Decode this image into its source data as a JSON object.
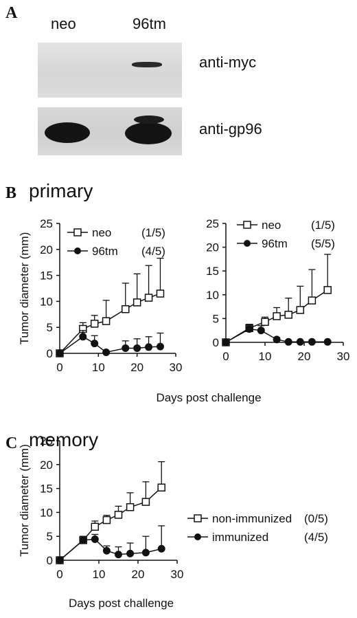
{
  "panels": {
    "a": {
      "letter": "A"
    },
    "b": {
      "letter": "B",
      "title": "primary"
    },
    "c": {
      "letter": "C",
      "title": "memory"
    }
  },
  "blot": {
    "lanes": [
      "neo",
      "96tm"
    ],
    "rows": [
      "anti-myc",
      "anti-gp96"
    ]
  },
  "colors": {
    "ink": "#111111",
    "blot_bg": "#dcdcdc",
    "band": "#1a1a1a"
  },
  "chart_data": [
    {
      "type": "line",
      "panel": "B",
      "ylabel": "Tumor diameter (mm)",
      "xlabel": "",
      "xlim": [
        0,
        30
      ],
      "ylim": [
        0,
        25
      ],
      "xticks": [
        0,
        10,
        20,
        30
      ],
      "yticks": [
        0,
        5,
        10,
        15,
        20,
        25
      ],
      "legend_position": "top-left",
      "series": [
        {
          "name": "neo",
          "count": "(1/5)",
          "marker": "square-open",
          "x": [
            0,
            6,
            9,
            12,
            17,
            20,
            23,
            26
          ],
          "y": [
            0,
            4.7,
            5.7,
            6.2,
            8.5,
            9.8,
            10.7,
            11.5
          ],
          "err": [
            0,
            1.2,
            1.6,
            4.0,
            5.0,
            5.5,
            6.2,
            6.8
          ]
        },
        {
          "name": "96tm",
          "count": "(4/5)",
          "marker": "circle-filled",
          "x": [
            0,
            6,
            9,
            12,
            17,
            20,
            23,
            26
          ],
          "y": [
            0,
            3.2,
            1.9,
            0.2,
            1.0,
            1.0,
            1.2,
            1.3
          ],
          "err": [
            0,
            1.2,
            1.5,
            0,
            1.4,
            1.8,
            2.0,
            2.6
          ]
        }
      ]
    },
    {
      "type": "line",
      "panel": "B",
      "ylabel": "",
      "xlabel": "",
      "xlim": [
        0,
        30
      ],
      "ylim": [
        0,
        25
      ],
      "xticks": [
        0,
        10,
        20,
        30
      ],
      "yticks": [
        0,
        5,
        10,
        15,
        20,
        25
      ],
      "legend_position": "top-left",
      "series": [
        {
          "name": "neo",
          "count": "(1/5)",
          "marker": "square-open",
          "x": [
            0,
            6,
            10,
            13,
            16,
            19,
            22,
            26
          ],
          "y": [
            0,
            3.0,
            4.3,
            5.5,
            5.8,
            6.8,
            8.8,
            11.0
          ],
          "err": [
            0,
            0.8,
            1.0,
            1.8,
            3.5,
            5.0,
            6.5,
            7.5
          ]
        },
        {
          "name": "96tm",
          "count": "(5/5)",
          "marker": "circle-filled",
          "x": [
            0,
            6,
            9,
            13,
            16,
            19,
            22,
            26
          ],
          "y": [
            0,
            2.8,
            2.5,
            0.6,
            0.1,
            0.1,
            0.1,
            0.1
          ],
          "err": [
            0,
            0.7,
            1.0,
            0.4,
            0,
            0,
            0,
            0
          ]
        }
      ]
    },
    {
      "type": "line",
      "panel": "B",
      "shared_xlabel": "Days post challenge"
    },
    {
      "type": "line",
      "panel": "C",
      "ylabel": "Tumor diameter (mm)",
      "xlabel": "Days post challenge",
      "xlim": [
        0,
        30
      ],
      "ylim": [
        0,
        25
      ],
      "xticks": [
        0,
        10,
        20,
        30
      ],
      "yticks": [
        0,
        5,
        10,
        15,
        20,
        25
      ],
      "legend_position": "right",
      "series": [
        {
          "name": "non-immunized",
          "count": "(0/5)",
          "marker": "square-open",
          "x": [
            0,
            6,
            9,
            12,
            15,
            18,
            22,
            26
          ],
          "y": [
            0,
            4.2,
            7.0,
            8.4,
            9.5,
            11.1,
            12.2,
            15.2
          ],
          "err": [
            0,
            0.8,
            1.2,
            1.0,
            1.8,
            3.0,
            4.2,
            5.4
          ]
        },
        {
          "name": "immunized",
          "count": "(4/5)",
          "marker": "circle-filled",
          "x": [
            0,
            6,
            9,
            12,
            15,
            18,
            22,
            26
          ],
          "y": [
            0,
            4.2,
            4.4,
            2.0,
            1.2,
            1.4,
            1.6,
            2.4
          ],
          "err": [
            0,
            0.8,
            1.0,
            1.0,
            1.6,
            2.2,
            3.4,
            4.8
          ]
        }
      ]
    }
  ]
}
